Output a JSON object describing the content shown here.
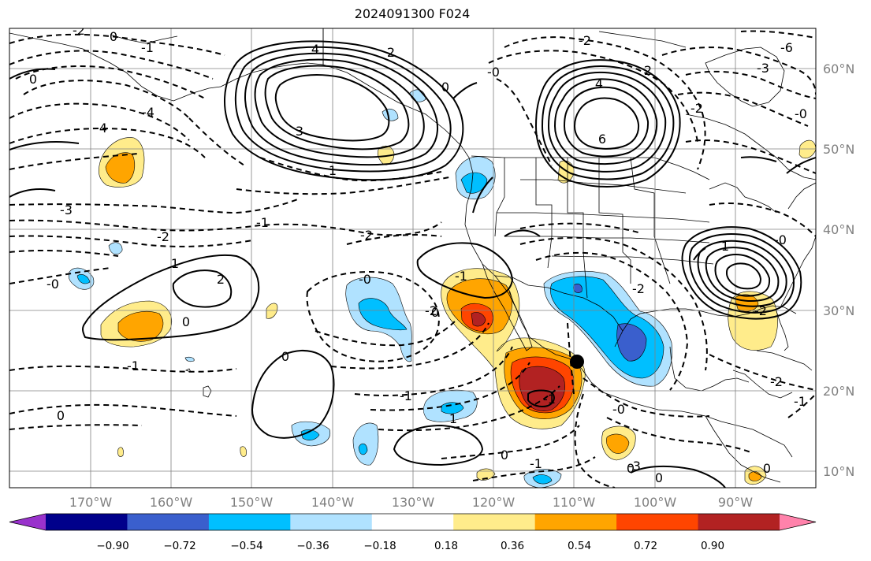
{
  "title": "2024091300 F024",
  "map": {
    "lon_labels": [
      "170°W",
      "160°W",
      "150°W",
      "140°W",
      "130°W",
      "120°W",
      "110°W",
      "100°W",
      "90°W"
    ],
    "lat_labels": [
      "60°N",
      "50°N",
      "40°N",
      "30°N",
      "20°N",
      "10°N"
    ],
    "point_marker": "black-dot",
    "contour_labels": [
      {
        "text": "-2",
        "kind": "dashed"
      },
      {
        "text": "0",
        "kind": "solid"
      },
      {
        "text": "-1",
        "kind": "dashed"
      },
      {
        "text": "0",
        "kind": "solid"
      },
      {
        "text": "-4",
        "kind": "dashed"
      },
      {
        "text": "4",
        "kind": "dashed"
      },
      {
        "text": "4",
        "kind": "solid"
      },
      {
        "text": "3",
        "kind": "solid"
      },
      {
        "text": "1",
        "kind": "solid"
      },
      {
        "text": "2",
        "kind": "solid"
      },
      {
        "text": "0",
        "kind": "solid"
      },
      {
        "text": "-3",
        "kind": "dashed"
      },
      {
        "text": "-2",
        "kind": "dashed"
      },
      {
        "text": "-1",
        "kind": "dashed"
      },
      {
        "text": "-2",
        "kind": "dashed"
      },
      {
        "text": "-0",
        "kind": "dashed"
      },
      {
        "text": "1",
        "kind": "solid"
      },
      {
        "text": "2",
        "kind": "solid"
      },
      {
        "text": "0",
        "kind": "solid"
      },
      {
        "text": "-0",
        "kind": "dashed"
      },
      {
        "text": "-1",
        "kind": "dashed"
      },
      {
        "text": "0",
        "kind": "solid"
      },
      {
        "text": "0",
        "kind": "dashed"
      },
      {
        "text": "-2",
        "kind": "dashed"
      },
      {
        "text": "-1",
        "kind": "dashed"
      },
      {
        "text": "1",
        "kind": "solid"
      },
      {
        "text": "-1",
        "kind": "dashed"
      },
      {
        "text": "-1",
        "kind": "dashed"
      },
      {
        "text": "0",
        "kind": "solid"
      },
      {
        "text": "4",
        "kind": "solid"
      },
      {
        "text": "6",
        "kind": "solid"
      },
      {
        "text": "2",
        "kind": "solid"
      },
      {
        "text": "-2",
        "kind": "dashed"
      },
      {
        "text": "-0",
        "kind": "dashed"
      },
      {
        "text": "-2",
        "kind": "dashed"
      },
      {
        "text": "-3",
        "kind": "dashed"
      },
      {
        "text": "-6",
        "kind": "dashed"
      },
      {
        "text": "-0",
        "kind": "dashed"
      },
      {
        "text": "1",
        "kind": "solid"
      },
      {
        "text": "-2",
        "kind": "dashed"
      },
      {
        "text": "-0",
        "kind": "dashed"
      },
      {
        "text": "-2",
        "kind": "dashed"
      },
      {
        "text": "-1",
        "kind": "dashed"
      },
      {
        "text": "0",
        "kind": "solid"
      },
      {
        "text": "-1",
        "kind": "dashed"
      },
      {
        "text": "-0",
        "kind": "dashed"
      },
      {
        "text": "-2",
        "kind": "dashed"
      },
      {
        "text": "0",
        "kind": "solid"
      },
      {
        "text": "0",
        "kind": "solid"
      },
      {
        "text": "0",
        "kind": "solid"
      },
      {
        "text": "-3",
        "kind": "dashed"
      }
    ]
  },
  "colorbar": {
    "tick_labels": [
      "−0.90",
      "−0.72",
      "−0.54",
      "−0.36",
      "−0.18",
      "0.18",
      "0.36",
      "0.54",
      "0.72",
      "0.90"
    ],
    "colors": [
      "#9932cc",
      "#00008b",
      "#3a5fcd",
      "#00bfff",
      "#b0e2ff",
      "#ffffff",
      "#ffec8b",
      "#ffa500",
      "#ff4500",
      "#b22222",
      "#ff82ab"
    ]
  }
}
